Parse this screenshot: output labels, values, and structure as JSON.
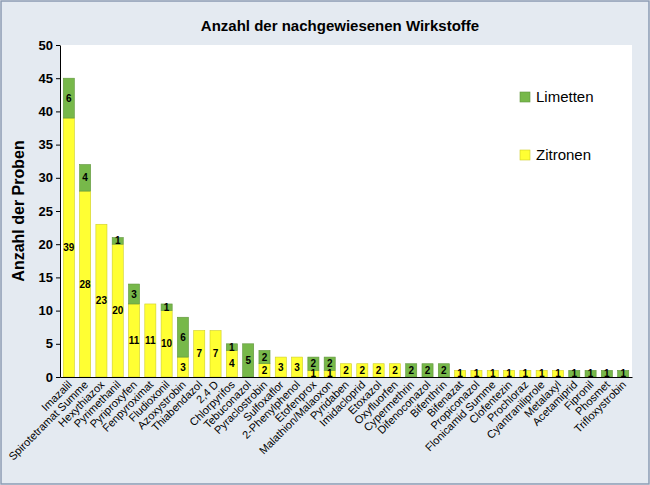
{
  "chart_data": {
    "type": "bar",
    "title": "Anzahl der nachgewiesenen Wirkstoffe",
    "y_label": "Anzahl der Proben",
    "categories": [
      "Imazalil",
      "Spirotetramat Summe",
      "Hexythiazox",
      "Pyrimethanil",
      "Pyriproxyfen",
      "Fenpyroximat",
      "Fludioxonil",
      "Azoxystrobin",
      "Thiabendazol",
      "2,4 D",
      "Chlorpyrifos",
      "Tebuconazol",
      "Pyraclostrobin",
      "Sulfoxaflor",
      "2-Phenylphenol",
      "Etofenprox",
      "Malathion/Malaoxon",
      "Pyridaben",
      "Imidacloprid",
      "Etoxazol",
      "Oxyfluorfen",
      "Cypermethrin",
      "Difenoconazol",
      "Bifenthrin",
      "Bifenazat",
      "Propiconazol",
      "Flonicamid Summe",
      "Clofentezin",
      "Prochloraz",
      "Cyantraniliprole",
      "Metalaxyl",
      "Acetamiprid",
      "Fipronil",
      "Phosmet",
      "Trifloxystrobin"
    ],
    "series": [
      {
        "name": "Zitronen",
        "color": "#ffff33",
        "values": [
          39,
          28,
          23,
          20,
          11,
          11,
          10,
          3,
          7,
          7,
          4,
          0,
          2,
          3,
          3,
          1,
          1,
          2,
          2,
          2,
          2,
          0,
          0,
          0,
          1,
          1,
          1,
          1,
          1,
          1,
          1,
          0,
          0,
          0,
          0
        ]
      },
      {
        "name": "Limetten",
        "color": "#77b84a",
        "values": [
          6,
          4,
          0,
          1,
          3,
          0,
          1,
          6,
          0,
          0,
          1,
          5,
          2,
          0,
          0,
          2,
          2,
          0,
          0,
          0,
          0,
          2,
          2,
          2,
          0,
          0,
          0,
          0,
          0,
          0,
          0,
          1,
          1,
          1,
          1
        ]
      }
    ],
    "stacked": true,
    "data_labels": true,
    "legend": "top-right",
    "grid": false,
    "ylim": [
      0,
      50
    ],
    "yticks": [
      0,
      5,
      10,
      15,
      20,
      25,
      30,
      35,
      40,
      45,
      50
    ]
  }
}
